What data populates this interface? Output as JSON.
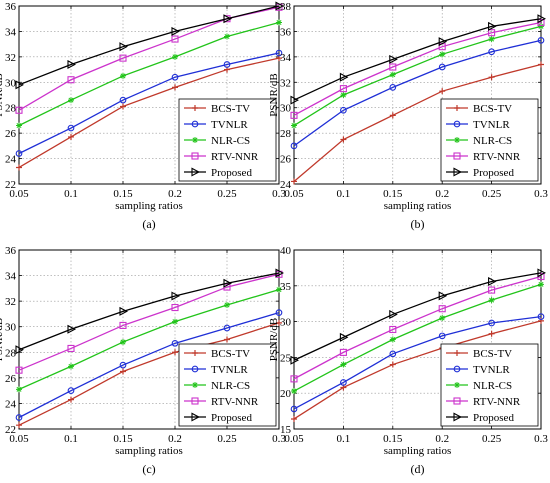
{
  "chart_data": [
    {
      "type": "line",
      "caption": "(a)",
      "xlabel": "sampling ratios",
      "ylabel": "PSNR/dB",
      "x": [
        0.05,
        0.1,
        0.15,
        0.2,
        0.25,
        0.3
      ],
      "xticks": [
        "0.05",
        "0.1",
        "0.15",
        "0.2",
        "0.25",
        "0.3"
      ],
      "ylim": [
        22,
        36
      ],
      "yticks": [
        22,
        24,
        26,
        28,
        30,
        32,
        34,
        36
      ],
      "legend_position": "bottom-right",
      "series": [
        {
          "name": "BCS-TV",
          "color": "#c0392b",
          "marker": "plus",
          "values": [
            23.3,
            25.7,
            28.1,
            29.6,
            31.0,
            31.9
          ]
        },
        {
          "name": "TVNLR",
          "color": "#1f2fd6",
          "marker": "circle",
          "values": [
            24.4,
            26.4,
            28.6,
            30.4,
            31.4,
            32.3
          ]
        },
        {
          "name": "NLR-CS",
          "color": "#22c41a",
          "marker": "star",
          "values": [
            26.6,
            28.6,
            30.5,
            32.0,
            33.6,
            34.7
          ]
        },
        {
          "name": "RTV-NNR",
          "color": "#cc33cc",
          "marker": "square",
          "values": [
            27.8,
            30.2,
            31.9,
            33.4,
            35.0,
            35.9
          ]
        },
        {
          "name": "Proposed",
          "color": "#000000",
          "marker": "triangle-right",
          "values": [
            29.8,
            31.4,
            32.8,
            34.0,
            35.0,
            36.0
          ]
        }
      ]
    },
    {
      "type": "line",
      "caption": "(b)",
      "xlabel": "sampling ratios",
      "ylabel": "PSNR/dB",
      "x": [
        0.05,
        0.1,
        0.15,
        0.2,
        0.25,
        0.3
      ],
      "xticks": [
        "0.05",
        "0.1",
        "0.15",
        "0.2",
        "0.25",
        "0.3"
      ],
      "ylim": [
        24,
        38
      ],
      "yticks": [
        24,
        26,
        28,
        30,
        32,
        34,
        36,
        38
      ],
      "legend_position": "bottom-right",
      "series": [
        {
          "name": "BCS-TV",
          "color": "#c0392b",
          "marker": "plus",
          "values": [
            24.2,
            27.5,
            29.4,
            31.3,
            32.4,
            33.4
          ]
        },
        {
          "name": "TVNLR",
          "color": "#1f2fd6",
          "marker": "circle",
          "values": [
            27.0,
            29.8,
            31.6,
            33.2,
            34.4,
            35.3
          ]
        },
        {
          "name": "NLR-CS",
          "color": "#22c41a",
          "marker": "star",
          "values": [
            28.6,
            31.0,
            32.6,
            34.2,
            35.4,
            36.4
          ]
        },
        {
          "name": "RTV-NNR",
          "color": "#cc33cc",
          "marker": "square",
          "values": [
            29.4,
            31.5,
            33.2,
            34.8,
            35.9,
            36.7
          ]
        },
        {
          "name": "Proposed",
          "color": "#000000",
          "marker": "triangle-right",
          "values": [
            30.6,
            32.4,
            33.8,
            35.2,
            36.4,
            37.0
          ]
        }
      ]
    },
    {
      "type": "line",
      "caption": "(c)",
      "xlabel": "sampling ratios",
      "ylabel": "PSNR/dB",
      "x": [
        0.05,
        0.1,
        0.15,
        0.2,
        0.25,
        0.3
      ],
      "xticks": [
        "0.05",
        "0.1",
        "0.15",
        "0.2",
        "0.25",
        "0.3"
      ],
      "ylim": [
        22,
        36
      ],
      "yticks": [
        22,
        24,
        26,
        28,
        30,
        32,
        34,
        36
      ],
      "legend_position": "bottom-right",
      "series": [
        {
          "name": "BCS-TV",
          "color": "#c0392b",
          "marker": "plus",
          "values": [
            22.3,
            24.3,
            26.5,
            28.0,
            29.0,
            30.3
          ]
        },
        {
          "name": "TVNLR",
          "color": "#1f2fd6",
          "marker": "circle",
          "values": [
            22.9,
            25.0,
            27.0,
            28.7,
            29.9,
            31.1
          ]
        },
        {
          "name": "NLR-CS",
          "color": "#22c41a",
          "marker": "star",
          "values": [
            25.1,
            26.9,
            28.8,
            30.4,
            31.7,
            32.9
          ]
        },
        {
          "name": "RTV-NNR",
          "color": "#cc33cc",
          "marker": "square",
          "values": [
            26.6,
            28.3,
            30.1,
            31.5,
            33.1,
            34.1
          ]
        },
        {
          "name": "Proposed",
          "color": "#000000",
          "marker": "triangle-right",
          "values": [
            28.2,
            29.8,
            31.2,
            32.4,
            33.4,
            34.2
          ]
        }
      ]
    },
    {
      "type": "line",
      "caption": "(d)",
      "xlabel": "sampling ratios",
      "ylabel": "PSNR/dB",
      "x": [
        0.05,
        0.1,
        0.15,
        0.2,
        0.25,
        0.3
      ],
      "xticks": [
        "0.05",
        "0.1",
        "0.15",
        "0.2",
        "0.25",
        "0.3"
      ],
      "ylim": [
        15,
        40
      ],
      "yticks": [
        15,
        20,
        25,
        30,
        35,
        40
      ],
      "legend_position": "bottom-right",
      "series": [
        {
          "name": "BCS-TV",
          "color": "#c0392b",
          "marker": "plus",
          "values": [
            16.4,
            20.8,
            24.0,
            26.3,
            28.3,
            30.1
          ]
        },
        {
          "name": "TVNLR",
          "color": "#1f2fd6",
          "marker": "circle",
          "values": [
            17.8,
            21.5,
            25.5,
            28.0,
            29.8,
            30.7
          ]
        },
        {
          "name": "NLR-CS",
          "color": "#22c41a",
          "marker": "star",
          "values": [
            20.3,
            24.0,
            27.5,
            30.5,
            33.0,
            35.2
          ]
        },
        {
          "name": "RTV-NNR",
          "color": "#cc33cc",
          "marker": "square",
          "values": [
            22.0,
            25.7,
            28.9,
            31.8,
            34.4,
            36.3
          ]
        },
        {
          "name": "Proposed",
          "color": "#000000",
          "marker": "triangle-right",
          "values": [
            24.6,
            27.8,
            31.0,
            33.6,
            35.6,
            36.8
          ]
        }
      ]
    }
  ]
}
